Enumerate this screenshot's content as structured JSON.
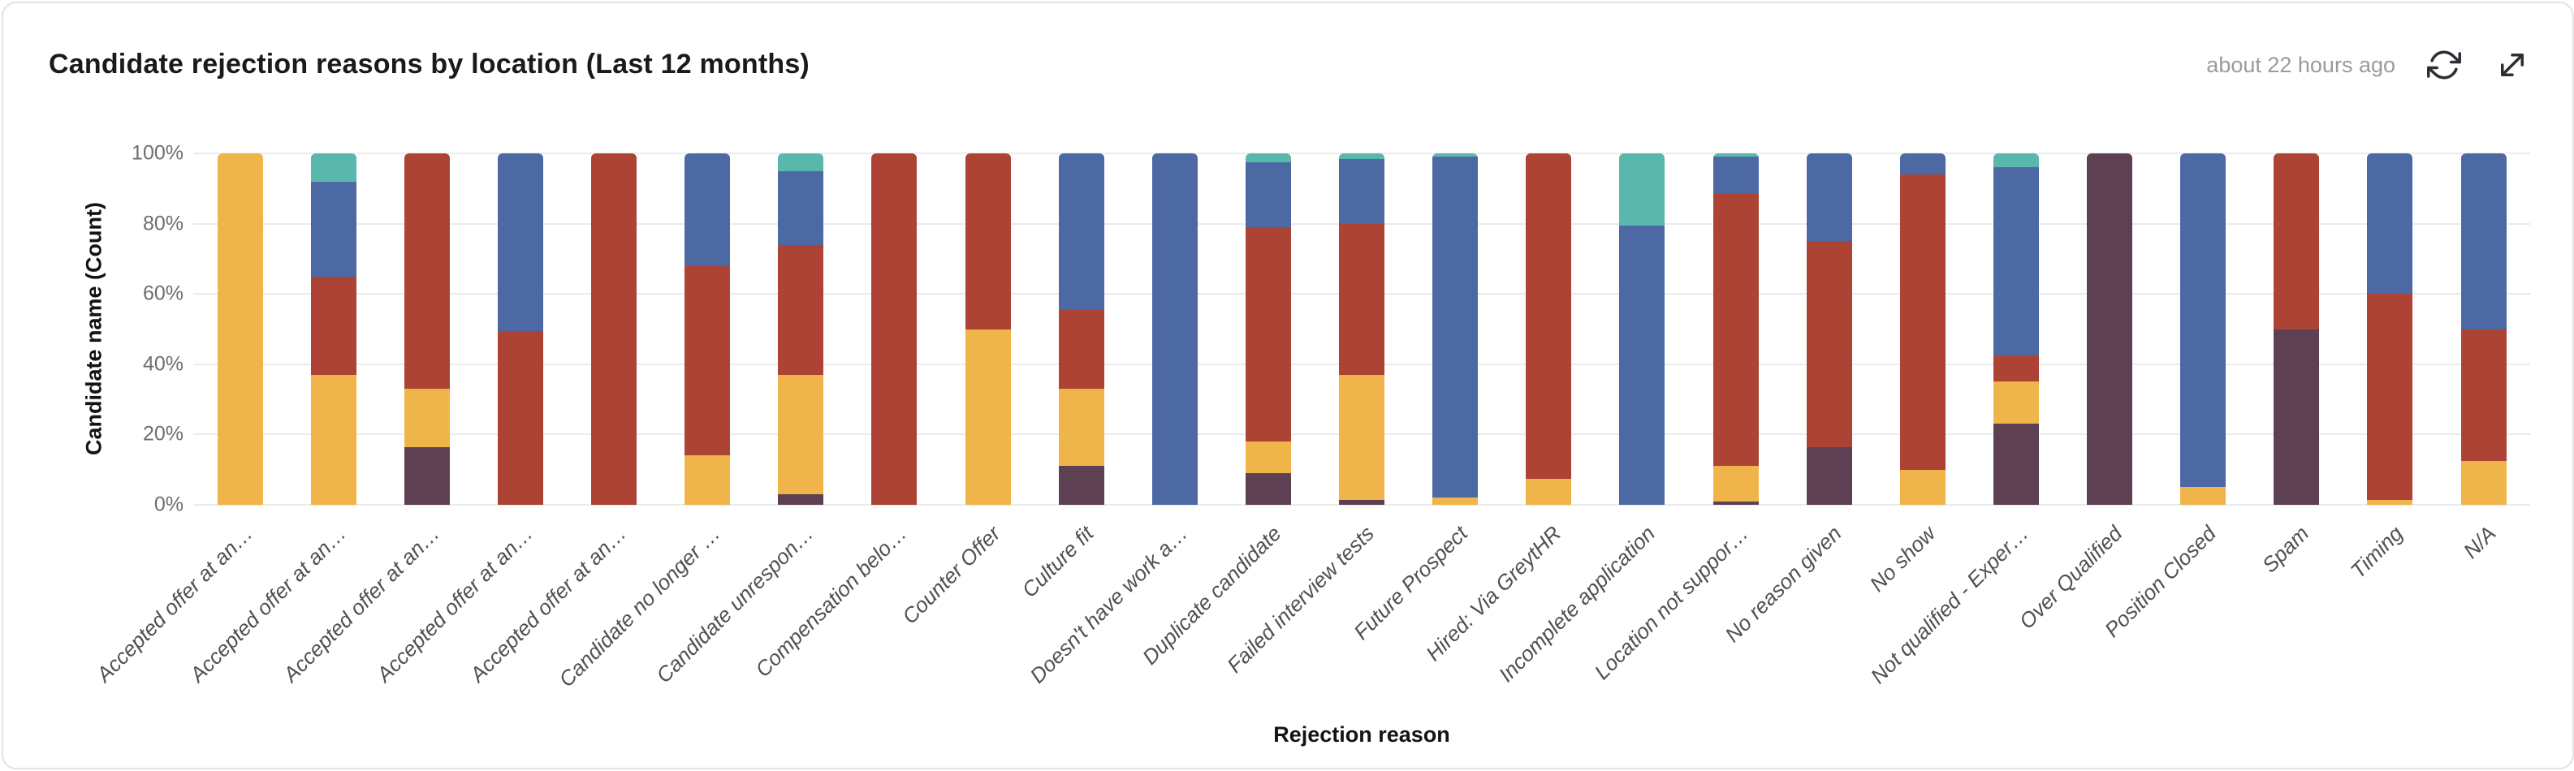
{
  "header": {
    "title": "Candidate rejection reasons by location (Last 12 months)",
    "last_updated": "about 22 hours ago",
    "icons": [
      "refresh-icon",
      "expand-icon"
    ]
  },
  "chart_data": {
    "type": "bar",
    "variant": "stacked-100-percent-column",
    "title": "Candidate rejection reasons by location (Last 12 months)",
    "xlabel": "Rejection reason",
    "ylabel": "Candidate name (Count)",
    "ylim": [
      0,
      100
    ],
    "y_ticks": [
      "0%",
      "20%",
      "40%",
      "60%",
      "80%",
      "100%"
    ],
    "grid": true,
    "legend_position": "none",
    "categories": [
      "Accepted offer at an…",
      "Accepted offer at an…",
      "Accepted offer at an…",
      "Accepted offer at an…",
      "Accepted offer at an…",
      "Candidate no longer …",
      "Candidate unrespon…",
      "Compensation belo…",
      "Counter Offer",
      "Culture fit",
      "Doesn't have work a…",
      "Duplicate candidate",
      "Failed interview tests",
      "Future Prospect",
      "Hired: Via GreytHR",
      "Incomplete application",
      "Location not suppor…",
      "No reason given",
      "No show",
      "Not qualified - Exper…",
      "Over Qualified",
      "Position Closed",
      "Spam",
      "Timing",
      "N/A"
    ],
    "stack_order": "bottom to top: purple, yellow, red, blue, teal; values are percent of bar",
    "series": [
      {
        "name": "purple",
        "color": "#5d4153",
        "values": [
          0,
          0,
          16.5,
          0,
          0,
          0,
          3,
          0,
          0,
          11,
          0,
          9,
          1.5,
          0,
          0,
          0,
          1,
          16.5,
          0,
          23,
          100,
          0,
          50,
          0,
          0
        ]
      },
      {
        "name": "yellow",
        "color": "#efb54b",
        "values": [
          100,
          37,
          16.5,
          0,
          0,
          14,
          34,
          0,
          50,
          22,
          0,
          9,
          35.5,
          2,
          7.5,
          0,
          10,
          0,
          10,
          12,
          0,
          5,
          0,
          1.5,
          12.5
        ]
      },
      {
        "name": "red",
        "color": "#ad4334",
        "values": [
          0,
          28,
          67,
          49.5,
          100,
          54,
          37,
          100,
          50,
          22.5,
          0,
          61,
          43,
          0,
          92.5,
          0,
          77.5,
          58.5,
          84,
          7.5,
          0,
          0,
          50,
          58.5,
          37.5
        ]
      },
      {
        "name": "blue",
        "color": "#4c69a4",
        "values": [
          0,
          27,
          0,
          50.5,
          0,
          32,
          21,
          0,
          0,
          44.5,
          100,
          18.5,
          18.5,
          97,
          0,
          79.5,
          10.5,
          25,
          6,
          53.5,
          0,
          95,
          0,
          40,
          50
        ]
      },
      {
        "name": "teal",
        "color": "#5ab7ab",
        "values": [
          0,
          8,
          0,
          0,
          0,
          0,
          5,
          0,
          0,
          0,
          0,
          2.5,
          1.5,
          1,
          0,
          20.5,
          1,
          0,
          0,
          4,
          0,
          0,
          0,
          0,
          0
        ]
      }
    ]
  }
}
